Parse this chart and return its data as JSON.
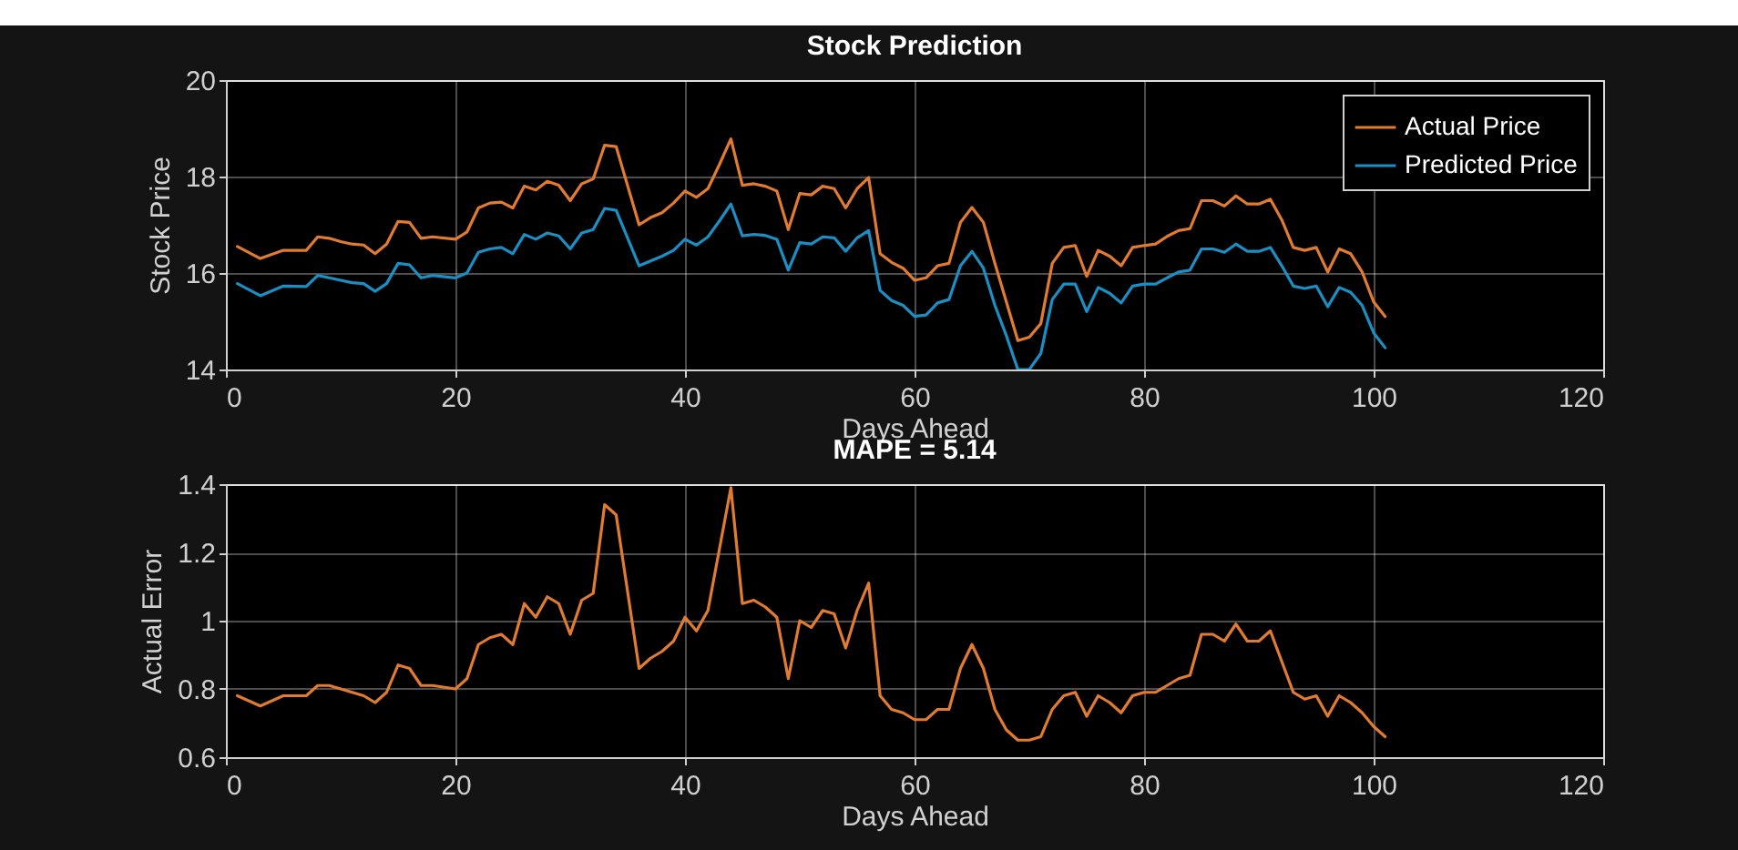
{
  "chart_data": [
    {
      "type": "line",
      "title": "Stock Prediction",
      "xlabel": "Days Ahead",
      "ylabel": "Stock Price",
      "x": [
        1,
        3,
        5,
        7,
        8,
        9,
        10,
        11,
        12,
        13,
        14,
        15,
        16,
        17,
        18,
        20,
        21,
        22,
        23,
        24,
        25,
        26,
        27,
        28,
        29,
        30,
        31,
        32,
        33,
        34,
        36,
        37,
        38,
        39,
        40,
        41,
        42,
        43,
        44,
        45,
        46,
        47,
        48,
        49,
        50,
        51,
        52,
        53,
        54,
        55,
        56,
        57,
        58,
        59,
        60,
        61,
        62,
        63,
        64,
        65,
        66,
        67,
        68,
        69,
        70,
        71,
        72,
        73,
        74,
        75,
        76,
        77,
        78,
        79,
        80,
        81,
        82,
        83,
        84,
        85,
        86,
        87,
        88,
        89,
        90,
        91,
        92,
        93,
        94,
        95,
        96,
        97,
        98,
        99,
        100,
        101
      ],
      "series": [
        {
          "name": "Actual Price",
          "color": "#e07b30",
          "values": [
            16.55,
            16.3,
            16.47,
            16.47,
            16.75,
            16.72,
            16.65,
            16.6,
            16.58,
            16.4,
            16.6,
            17.07,
            17.05,
            16.72,
            16.75,
            16.7,
            16.85,
            17.35,
            17.45,
            17.47,
            17.35,
            17.8,
            17.72,
            17.9,
            17.82,
            17.5,
            17.85,
            17.95,
            18.65,
            18.62,
            17.0,
            17.15,
            17.25,
            17.45,
            17.7,
            17.57,
            17.75,
            18.25,
            18.78,
            17.82,
            17.85,
            17.8,
            17.7,
            16.9,
            17.65,
            17.62,
            17.8,
            17.75,
            17.35,
            17.75,
            17.98,
            16.4,
            16.22,
            16.1,
            15.85,
            15.9,
            16.15,
            16.2,
            17.05,
            17.36,
            17.05,
            16.2,
            15.4,
            14.6,
            14.67,
            14.95,
            16.2,
            16.53,
            16.57,
            15.93,
            16.47,
            16.35,
            16.15,
            16.53,
            16.57,
            16.6,
            16.76,
            16.88,
            16.92,
            17.5,
            17.5,
            17.39,
            17.6,
            17.43,
            17.43,
            17.53,
            17.1,
            16.53,
            16.47,
            16.53,
            16.02,
            16.5,
            16.4,
            16.02,
            15.4,
            15.1
          ]
        },
        {
          "name": "Predicted Price",
          "color": "#1a8fc4",
          "values": [
            15.78,
            15.53,
            15.73,
            15.72,
            15.95,
            15.9,
            15.85,
            15.8,
            15.78,
            15.62,
            15.78,
            16.2,
            16.17,
            15.9,
            15.95,
            15.9,
            16.0,
            16.43,
            16.5,
            16.53,
            16.4,
            16.8,
            16.7,
            16.83,
            16.77,
            16.5,
            16.83,
            16.9,
            17.34,
            17.3,
            16.15,
            16.25,
            16.35,
            16.47,
            16.7,
            16.58,
            16.75,
            17.08,
            17.43,
            16.77,
            16.8,
            16.78,
            16.7,
            16.06,
            16.63,
            16.6,
            16.75,
            16.73,
            16.45,
            16.73,
            16.88,
            15.64,
            15.43,
            15.33,
            15.1,
            15.13,
            15.38,
            15.45,
            16.15,
            16.45,
            16.1,
            15.33,
            14.7,
            14.0,
            14.0,
            14.33,
            15.45,
            15.77,
            15.77,
            15.2,
            15.7,
            15.58,
            15.38,
            15.73,
            15.77,
            15.77,
            15.9,
            16.02,
            16.06,
            16.5,
            16.5,
            16.43,
            16.6,
            16.45,
            16.45,
            16.53,
            16.15,
            15.73,
            15.68,
            15.73,
            15.3,
            15.7,
            15.6,
            15.33,
            14.76,
            14.45
          ]
        }
      ],
      "xlim": [
        0,
        120
      ],
      "xticks": [
        0,
        20,
        40,
        60,
        80,
        100,
        120
      ],
      "ylim": [
        14,
        20
      ],
      "yticks": [
        14,
        16,
        18,
        20
      ],
      "grid": true,
      "legend": "top right",
      "line_style": "solid"
    },
    {
      "type": "line",
      "title": "MAPE = 5.14",
      "xlabel": "Days Ahead",
      "ylabel": "Actual Error",
      "x": [
        1,
        3,
        5,
        7,
        8,
        9,
        10,
        11,
        12,
        13,
        14,
        15,
        16,
        17,
        18,
        20,
        21,
        22,
        23,
        24,
        25,
        26,
        27,
        28,
        29,
        30,
        31,
        32,
        33,
        34,
        36,
        37,
        38,
        39,
        40,
        41,
        42,
        43,
        44,
        45,
        46,
        47,
        48,
        49,
        50,
        51,
        52,
        53,
        54,
        55,
        56,
        57,
        58,
        59,
        60,
        61,
        62,
        63,
        64,
        65,
        66,
        67,
        68,
        69,
        70,
        71,
        72,
        73,
        74,
        75,
        76,
        77,
        78,
        79,
        80,
        81,
        82,
        83,
        84,
        85,
        86,
        87,
        88,
        89,
        90,
        91,
        92,
        93,
        94,
        95,
        96,
        97,
        98,
        99,
        100,
        101
      ],
      "series": [
        {
          "color": "#e07b30",
          "values": [
            0.78,
            0.75,
            0.78,
            0.78,
            0.81,
            0.81,
            0.8,
            0.79,
            0.78,
            0.76,
            0.79,
            0.87,
            0.86,
            0.81,
            0.81,
            0.8,
            0.83,
            0.93,
            0.95,
            0.96,
            0.93,
            1.05,
            1.01,
            1.07,
            1.05,
            0.96,
            1.06,
            1.08,
            1.34,
            1.31,
            0.86,
            0.89,
            0.91,
            0.94,
            1.01,
            0.97,
            1.03,
            1.21,
            1.39,
            1.05,
            1.06,
            1.04,
            1.01,
            0.83,
            1.0,
            0.98,
            1.03,
            1.02,
            0.92,
            1.03,
            1.11,
            0.78,
            0.74,
            0.73,
            0.71,
            0.71,
            0.74,
            0.74,
            0.86,
            0.93,
            0.86,
            0.74,
            0.68,
            0.65,
            0.65,
            0.66,
            0.74,
            0.78,
            0.79,
            0.72,
            0.78,
            0.76,
            0.73,
            0.78,
            0.79,
            0.79,
            0.81,
            0.83,
            0.84,
            0.96,
            0.96,
            0.94,
            0.99,
            0.94,
            0.94,
            0.97,
            0.88,
            0.79,
            0.77,
            0.78,
            0.72,
            0.78,
            0.76,
            0.73,
            0.69,
            0.66
          ]
        }
      ],
      "xlim": [
        0,
        120
      ],
      "xticks": [
        0,
        20,
        40,
        60,
        80,
        100,
        120
      ],
      "ylim": [
        0.6,
        1.4
      ],
      "yticks": [
        0.6,
        0.8,
        1,
        1.2,
        1.4
      ],
      "grid": true,
      "line_style": "solid"
    }
  ]
}
